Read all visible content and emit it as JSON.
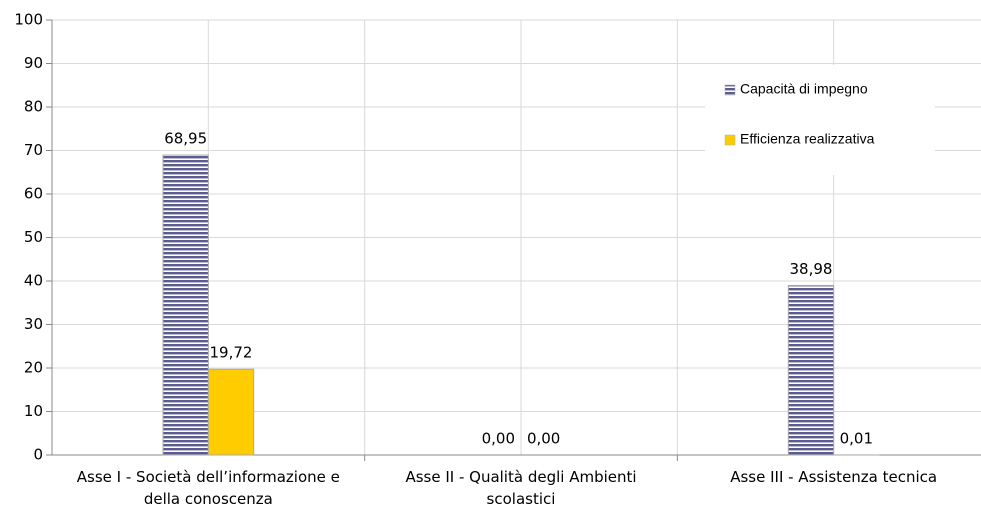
{
  "chart_data": {
    "type": "bar",
    "categories": [
      "Asse I - Società dell’informazione e della conoscenza",
      "Asse II - Qualità degli Ambienti scolastici",
      "Asse III - Assistenza tecnica"
    ],
    "series": [
      {
        "name": "Capacità di impegno",
        "color": "#5b5b8f",
        "pattern": "horizontal-stripes",
        "values": [
          68.95,
          0,
          38.98
        ],
        "value_labels": [
          "68,95",
          "0,00",
          "38,98"
        ]
      },
      {
        "name": "Efficienza realizzativa",
        "color": "#ffcc00",
        "values": [
          19.72,
          0,
          0.01
        ],
        "value_labels": [
          "19,72",
          "0,00",
          "0,01"
        ]
      }
    ],
    "ylim": [
      0,
      100
    ],
    "yticks": [
      0,
      10,
      20,
      30,
      40,
      50,
      60,
      70,
      80,
      90,
      100
    ],
    "grid": true,
    "legend": "upper right"
  }
}
